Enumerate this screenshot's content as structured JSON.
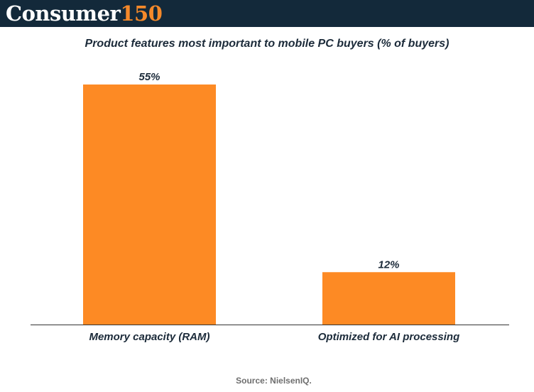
{
  "header": {
    "logo_word": "Consumer",
    "logo_number": "150"
  },
  "chart_data": {
    "type": "bar",
    "title": "Product features most important to mobile PC buyers (% of buyers)",
    "categories": [
      "Memory capacity (RAM)",
      "Optimized for AI processing"
    ],
    "values": [
      55,
      12
    ],
    "data_labels": [
      "55%",
      "12%"
    ],
    "ylim": [
      0,
      55
    ],
    "grid": false,
    "bar_color": "#fd8a24",
    "axis_color": "#333333",
    "text_color": "#1c2b3a"
  },
  "footer": {
    "source": "Source: NielsenIQ."
  }
}
